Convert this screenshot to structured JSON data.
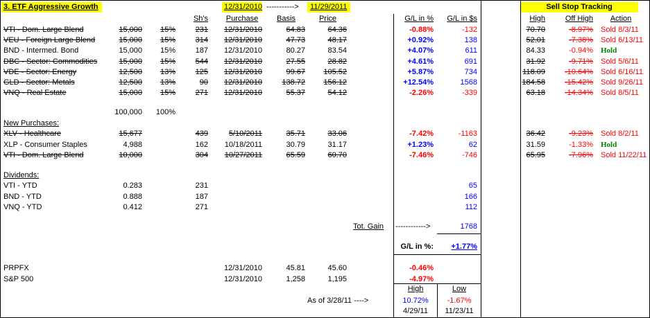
{
  "title": "3. ETF Aggressive Growth",
  "header": {
    "date_start": "12/31/2010",
    "arrow": "----------->",
    "date_end": "11/29/2011",
    "cols": [
      "Sh's",
      "Purchase",
      "Basis",
      "Price",
      "G/L in %",
      "G/L in $s"
    ]
  },
  "holdings": [
    {
      "name": "VTI - Dom. Large Blend",
      "amount": "15,000",
      "pct": "15%",
      "shares": "231",
      "date": "12/31/2010",
      "basis": "64.83",
      "price": "64.36",
      "gl_pct": "-0.88%",
      "gl_usd": "-132",
      "high": "70.70",
      "off_high": "-8.97%",
      "action": "Sold 8/3/11",
      "struck": true
    },
    {
      "name": "VEU - Foreign Large Blend",
      "amount": "15,000",
      "pct": "15%",
      "shares": "314",
      "date": "12/31/2010",
      "basis": "47.73",
      "price": "48.17",
      "gl_pct": "+0.92%",
      "gl_usd": "138",
      "high": "52.01",
      "off_high": "-7.38%",
      "action": "Sold 6/13/11",
      "struck": true
    },
    {
      "name": "BND - Intermed. Bond",
      "amount": "15,000",
      "pct": "15%",
      "shares": "187",
      "date": "12/31/2010",
      "basis": "80.27",
      "price": "83.54",
      "gl_pct": "+4.07%",
      "gl_usd": "611",
      "high": "84.33",
      "off_high": "-0.94%",
      "action": "Hold",
      "struck": false
    },
    {
      "name": "DBC - Sector: Commodities",
      "amount": "15,000",
      "pct": "15%",
      "shares": "544",
      "date": "12/31/2010",
      "basis": "27.55",
      "price": "28.82",
      "gl_pct": "+4.61%",
      "gl_usd": "691",
      "high": "31.92",
      "off_high": "-9.71%",
      "action": "Sold 5/6/11",
      "struck": true
    },
    {
      "name": "VDE - Sector: Energy",
      "amount": "12,500",
      "pct": "13%",
      "shares": "125",
      "date": "12/31/2010",
      "basis": "99.67",
      "price": "105.52",
      "gl_pct": "+5.87%",
      "gl_usd": "734",
      "high": "118.09",
      "off_high": "-10.64%",
      "action": "Sold 6/16/11",
      "struck": true
    },
    {
      "name": "GLD - Sector: Metals",
      "amount": "12,500",
      "pct": "13%",
      "shares": "90",
      "date": "12/31/2010",
      "basis": "138.72",
      "price": "156.12",
      "gl_pct": "+12.54%",
      "gl_usd": "1568",
      "high": "184.58",
      "off_high": "-15.42%",
      "action": "Sold 9/26/11",
      "struck": true
    },
    {
      "name": "VNQ - Real Estate",
      "amount": "15,000",
      "pct": "15%",
      "shares": "271",
      "date": "12/31/2010",
      "basis": "55.37",
      "price": "54.12",
      "gl_pct": "-2.26%",
      "gl_usd": "-339",
      "high": "63.18",
      "off_high": "-14.34%",
      "action": "Sold 8/5/11",
      "struck": true
    }
  ],
  "totals": {
    "amount": "100,000",
    "pct": "100%"
  },
  "new_purchases_label": "New Purchases:",
  "new_purchases": [
    {
      "name": "XLV - Healthcare",
      "amount": "15,677",
      "shares": "439",
      "date": "5/10/2011",
      "basis": "35.71",
      "price": "33.06",
      "gl_pct": "-7.42%",
      "gl_usd": "-1163",
      "high": "36.42",
      "off_high": "-9.23%",
      "action": "Sold 8/2/11",
      "struck": true
    },
    {
      "name": "XLP - Consumer Staples",
      "amount": "4,988",
      "shares": "162",
      "date": "10/18/2011",
      "basis": "30.79",
      "price": "31.17",
      "gl_pct": "+1.23%",
      "gl_usd": "62",
      "high": "31.59",
      "off_high": "-1.33%",
      "action": "Hold",
      "struck": false
    },
    {
      "name": "VTI - Dom. Large Blend",
      "amount": "10,000",
      "shares": "304",
      "date": "10/27/2011",
      "basis": "65.59",
      "price": "60.70",
      "gl_pct": "-7.46%",
      "gl_usd": "-746",
      "high": "65.95",
      "off_high": "-7.96%",
      "action": "Sold 11/22/11",
      "struck": true
    }
  ],
  "dividends_label": "Dividends:",
  "dividends": [
    {
      "name": "VTI - YTD",
      "value": "0.283",
      "shares": "231",
      "usd": "65"
    },
    {
      "name": "BND - YTD",
      "value": "0.888",
      "shares": "187",
      "usd": "166"
    },
    {
      "name": "VNQ - YTD",
      "value": "0.412",
      "shares": "271",
      "usd": "112"
    }
  ],
  "tot_gain": {
    "label": "Tot. Gain",
    "arrow": "------------>",
    "value": "1768"
  },
  "gl_pct": {
    "label": "G/L in %:",
    "value": "+1.77%"
  },
  "benchmarks": [
    {
      "name": "PRPFX",
      "date": "12/31/2010",
      "basis": "45.81",
      "price": "45.60",
      "gl_pct": "-0.46%"
    },
    {
      "name": "S&P 500",
      "date": "12/31/2010",
      "basis": "1,258",
      "price": "1,195",
      "gl_pct": "-4.97%"
    }
  ],
  "hilo": {
    "as_of": "As of 3/28/11 ---->",
    "high_label": "High",
    "low_label": "Low",
    "high_pct": "10.72%",
    "low_pct": "-1.67%",
    "high_date": "4/29/11",
    "low_date": "11/23/11"
  },
  "sell_stop": {
    "title": "Sell Stop Tracking",
    "cols": [
      "High",
      "Off High",
      "Action"
    ]
  },
  "colors": {
    "highlight": "#ffff00",
    "negative": "#ff0000",
    "positive": "#0000ff",
    "hold": "#008000"
  }
}
